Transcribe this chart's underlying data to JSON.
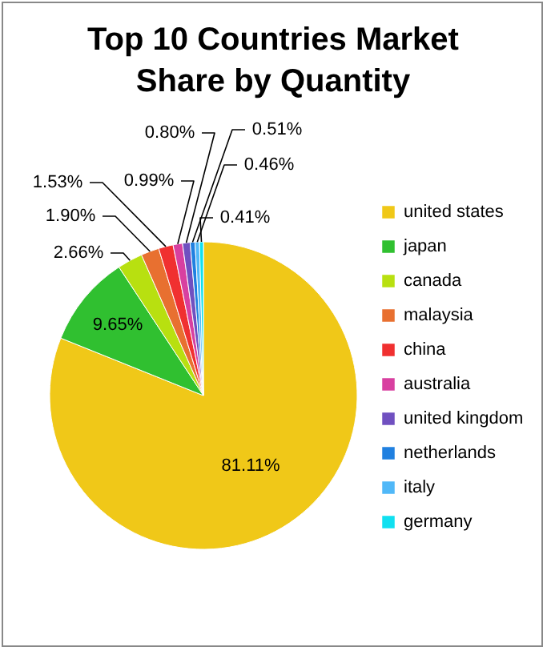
{
  "chart_data": {
    "type": "pie",
    "title": "Top 10 Countries Market Share by Quantity",
    "categories": [
      "united states",
      "japan",
      "canada",
      "malaysia",
      "china",
      "australia",
      "united kingdom",
      "netherlands",
      "italy",
      "germany"
    ],
    "values": [
      81.11,
      9.65,
      2.66,
      1.9,
      1.53,
      0.99,
      0.8,
      0.51,
      0.46,
      0.41
    ],
    "value_labels": [
      "81.11%",
      "9.65%",
      "2.66%",
      "1.90%",
      "1.53%",
      "0.99%",
      "0.80%",
      "0.51%",
      "0.46%",
      "0.41%"
    ],
    "colors": [
      "#f0c818",
      "#30c030",
      "#b8e010",
      "#e87030",
      "#f03030",
      "#d840a0",
      "#7050c0",
      "#2080e0",
      "#50b8f8",
      "#10e0f0"
    ],
    "legend": "right"
  }
}
